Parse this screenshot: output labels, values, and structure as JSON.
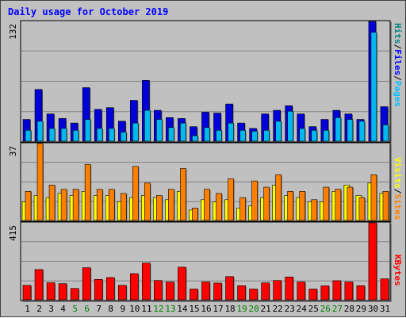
{
  "chart_data": {
    "title": "Daily usage for October 2019",
    "type": "bar",
    "categories": [
      "1",
      "2",
      "3",
      "4",
      "5",
      "6",
      "7",
      "8",
      "9",
      "10",
      "11",
      "12",
      "13",
      "14",
      "15",
      "16",
      "17",
      "18",
      "19",
      "20",
      "21",
      "22",
      "23",
      "24",
      "25",
      "26",
      "27",
      "28",
      "29",
      "30",
      "31"
    ],
    "weekend_days": [
      "5",
      "6",
      "12",
      "13",
      "19",
      "20",
      "26",
      "27"
    ],
    "weekend_color": "#008000",
    "weekday_color": "#000000",
    "panels": [
      {
        "id": "hits-files-pages",
        "scale_max_label": "132",
        "ylim": [
          0,
          132
        ],
        "series": [
          {
            "name": "Hits",
            "color": "#0000d8",
            "values": [
              24,
              57,
              30,
              25,
              20,
              59,
              35,
              37,
              22,
              45,
              67,
              34,
              26,
              25,
              16,
              32,
              31,
              41,
              20,
              14,
              30,
              34,
              39,
              30,
              16,
              24,
              34,
              30,
              24,
              132,
              38
            ]
          },
          {
            "name": "Files",
            "color": "#00b8f0",
            "values": [
              12,
              22,
              14,
              14,
              12,
              24,
              14,
              14,
              10,
              20,
              34,
              24,
              15,
              20,
              6,
              15,
              12,
              20,
              12,
              11,
              12,
              22,
              33,
              14,
              12,
              12,
              26,
              24,
              22,
              120,
              18
            ]
          },
          {
            "name": "Pages",
            "color": "#00c0ff",
            "values": [],
            "legend_only": true
          }
        ],
        "legend_color_hits": "#008080",
        "legend_color_files": "#0000ff",
        "legend_color_pages": "#00c0ff"
      },
      {
        "id": "visits-sites",
        "scale_max_label": "37",
        "ylim": [
          0,
          37
        ],
        "series": [
          {
            "name": "Visits",
            "color": "#ffff00",
            "values": [
              9,
              12,
              11,
              13,
              12,
              14,
              12,
              12,
              9,
              11,
              12,
              11,
              10,
              14,
              5,
              10,
              9,
              10,
              6,
              7,
              11,
              17,
              12,
              11,
              9,
              9,
              14,
              17,
              12,
              18,
              13
            ]
          },
          {
            "name": "Sites",
            "color": "#ff8000",
            "values": [
              14,
              37,
              17,
              15,
              15,
              27,
              15,
              15,
              13,
              26,
              18,
              12,
              15,
              25,
              6,
              15,
              13,
              20,
              11,
              19,
              16,
              22,
              14,
              14,
              10,
              16,
              15,
              16,
              11,
              22,
              14
            ]
          }
        ],
        "legend_color_sites": "#ff8000",
        "legend_color_visits": "#ffff00"
      },
      {
        "id": "kbytes",
        "scale_max_label": "415",
        "ylim": [
          0,
          415
        ],
        "series": [
          {
            "name": "KBytes",
            "color": "#ff0000",
            "values": [
              78,
              163,
              92,
              87,
              61,
              173,
              110,
              120,
              78,
              141,
              198,
              104,
              96,
              176,
              58,
              96,
              90,
              125,
              76,
              58,
              91,
              104,
              123,
              96,
              58,
              75,
              103,
              96,
              76,
              415,
              113
            ]
          }
        ],
        "legend_color_kbytes": "#ff0000"
      }
    ],
    "legend": {
      "top_panel": [
        "Pages",
        "/",
        "Files",
        "/",
        "Hits"
      ],
      "middle_panel": [
        "Sites",
        "/",
        "Visits"
      ],
      "bottom_panel": [
        "KBytes"
      ]
    },
    "grid": true,
    "colors": {
      "background": "#c0c0c0",
      "plot_background": "#c0c0c0",
      "grid": "#808080",
      "title": "#0000ff"
    }
  }
}
